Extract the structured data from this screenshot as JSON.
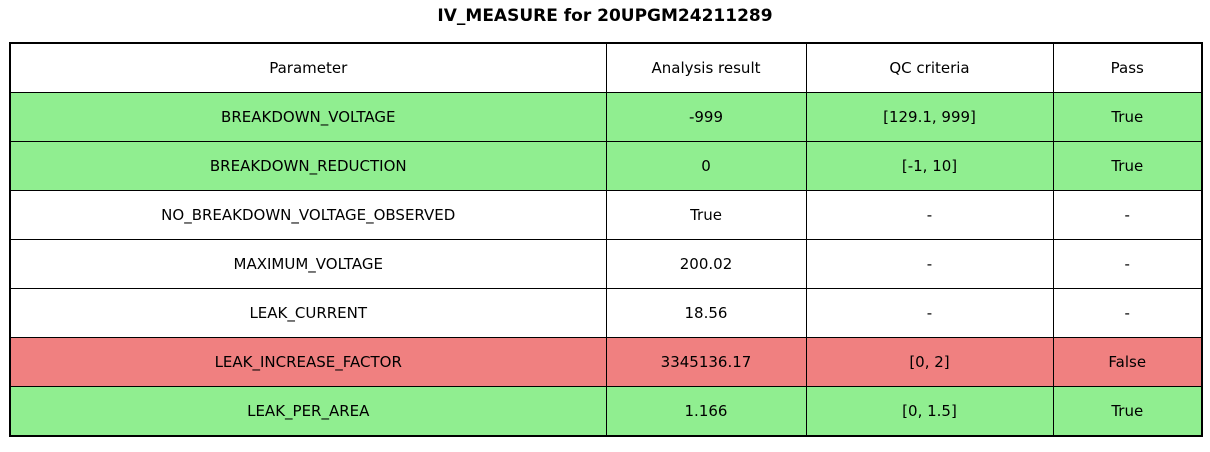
{
  "title": "IV_MEASURE for 20UPGM24211289",
  "chart_data": {
    "type": "table",
    "title": "IV_MEASURE for 20UPGM24211289",
    "columns": [
      "Parameter",
      "Analysis result",
      "QC criteria",
      "Pass"
    ],
    "rows": [
      {
        "parameter": "BREAKDOWN_VOLTAGE",
        "analysis_result": "-999",
        "qc_criteria": "[129.1, 999]",
        "pass": "True",
        "status": "pass"
      },
      {
        "parameter": "BREAKDOWN_REDUCTION",
        "analysis_result": "0",
        "qc_criteria": "[-1, 10]",
        "pass": "True",
        "status": "pass"
      },
      {
        "parameter": "NO_BREAKDOWN_VOLTAGE_OBSERVED",
        "analysis_result": "True",
        "qc_criteria": "-",
        "pass": "-",
        "status": "neutral"
      },
      {
        "parameter": "MAXIMUM_VOLTAGE",
        "analysis_result": "200.02",
        "qc_criteria": "-",
        "pass": "-",
        "status": "neutral"
      },
      {
        "parameter": "LEAK_CURRENT",
        "analysis_result": "18.56",
        "qc_criteria": "-",
        "pass": "-",
        "status": "neutral"
      },
      {
        "parameter": "LEAK_INCREASE_FACTOR",
        "analysis_result": "3345136.17",
        "qc_criteria": "[0, 2]",
        "pass": "False",
        "status": "fail"
      },
      {
        "parameter": "LEAK_PER_AREA",
        "analysis_result": "1.166",
        "qc_criteria": "[0, 1.5]",
        "pass": "True",
        "status": "pass"
      }
    ],
    "legend_position": "none",
    "grid": "full-borders"
  },
  "colors": {
    "pass_bg": "#90ee90",
    "fail_bg": "#f08080",
    "neutral_bg": "#ffffff",
    "border": "#000000",
    "text": "#000000"
  }
}
